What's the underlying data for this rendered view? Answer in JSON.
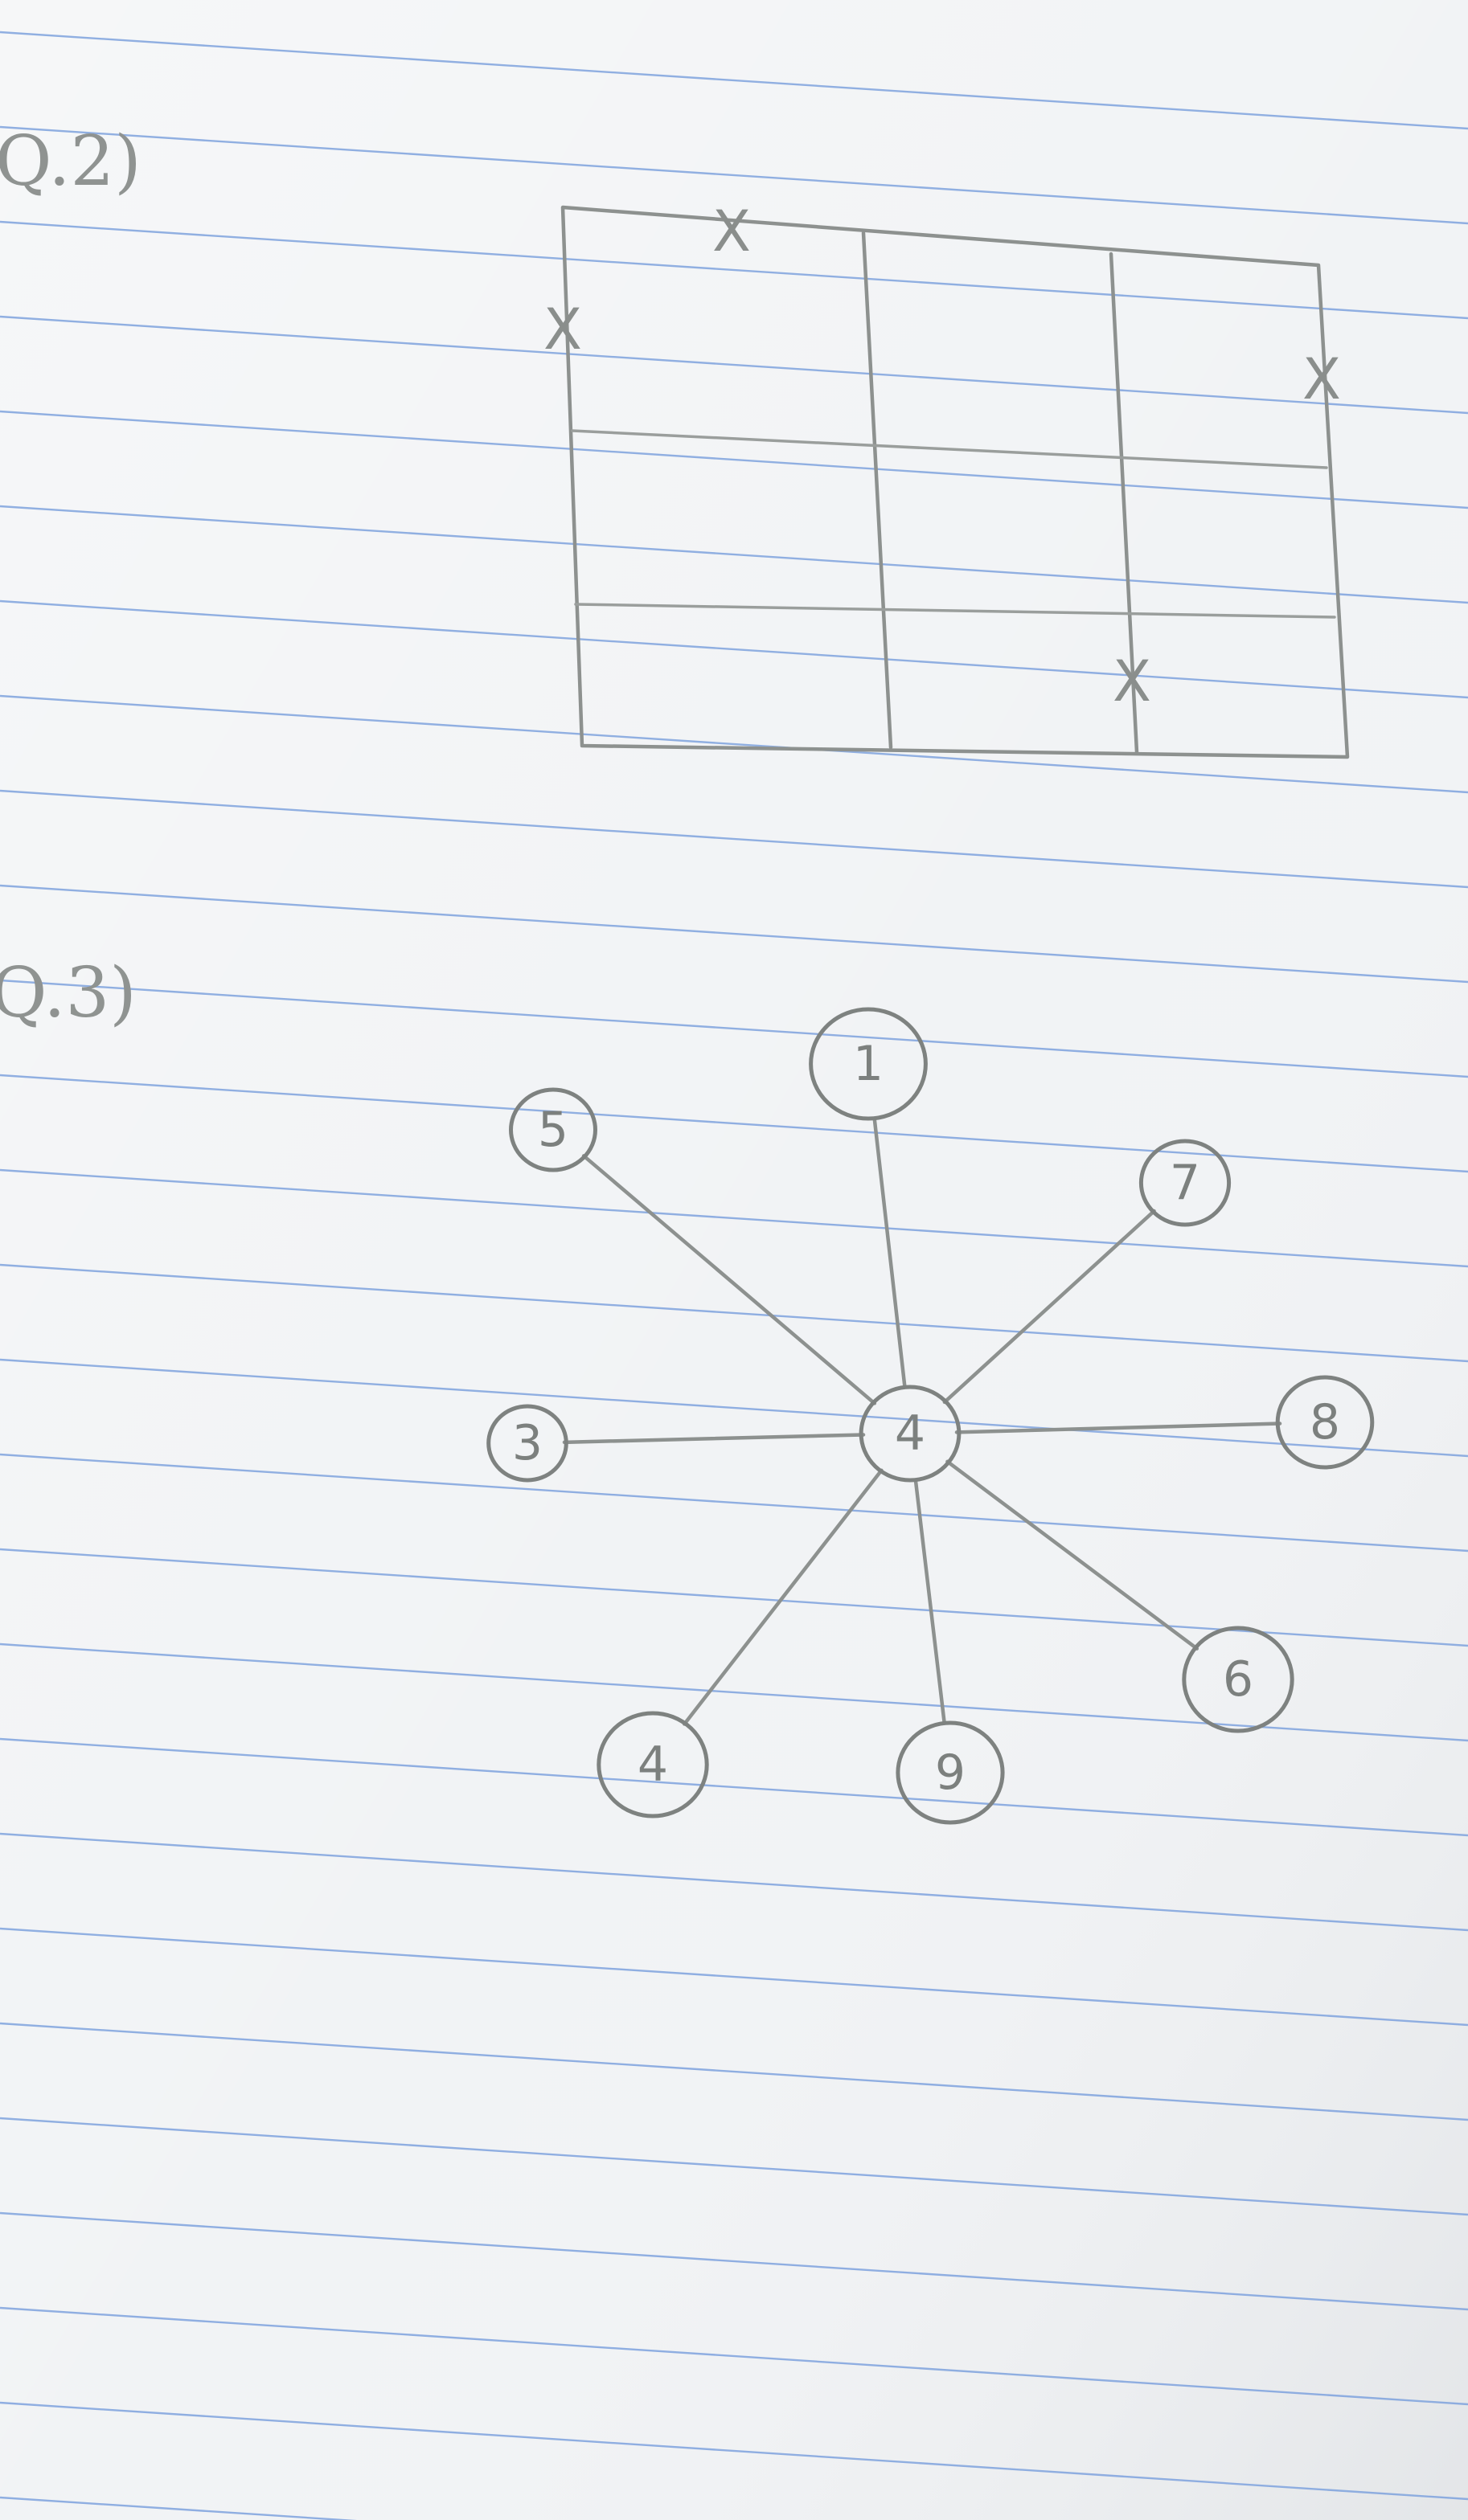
{
  "colors": {
    "paper": "#f1f3f5",
    "rule_line": "#7fa3de",
    "pencil": "#8d918f"
  },
  "questions": [
    {
      "id": "q2",
      "label": "Q.2)"
    },
    {
      "id": "q3",
      "label": "Q.3)"
    }
  ],
  "grid_figure": {
    "rows": 3,
    "columns": 3,
    "mark": "X",
    "marks": [
      "X",
      "X",
      "X",
      "X"
    ]
  },
  "graph": {
    "center": "4",
    "nodes": [
      "1",
      "7",
      "8",
      "6",
      "9",
      "4",
      "3",
      "5"
    ],
    "edges": [
      [
        "4",
        "1"
      ],
      [
        "4",
        "7"
      ],
      [
        "4",
        "8"
      ],
      [
        "4",
        "6"
      ],
      [
        "4",
        "9"
      ],
      [
        "4",
        "4"
      ],
      [
        "4",
        "3"
      ],
      [
        "4",
        "5"
      ]
    ]
  }
}
